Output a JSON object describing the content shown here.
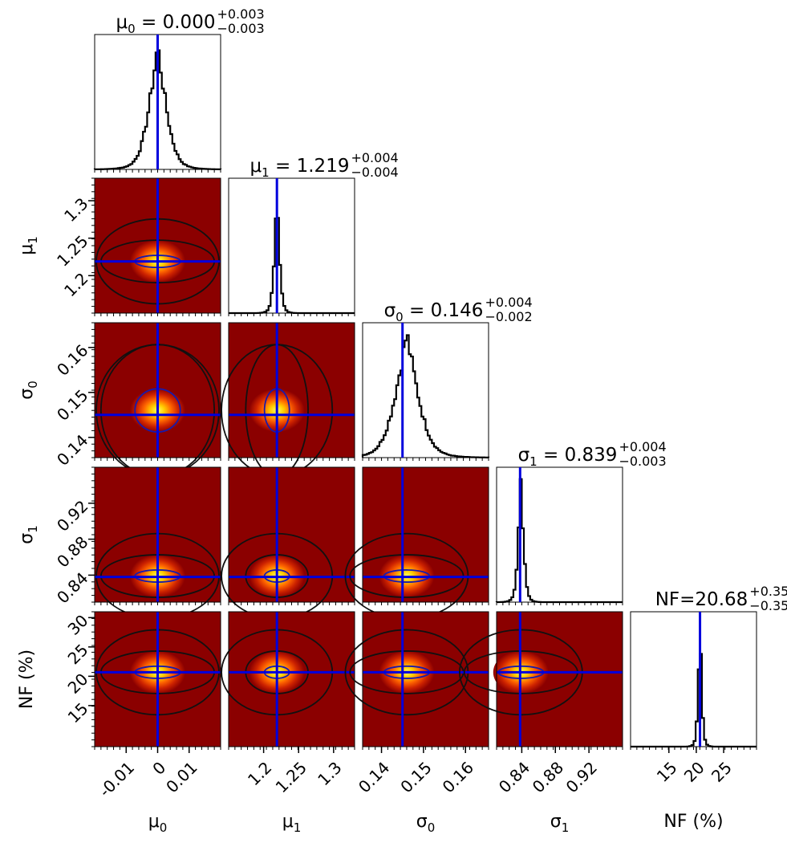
{
  "chart_data": {
    "type": "corner",
    "parameters": [
      {
        "key": "mu0",
        "label": "μ",
        "sub": "0",
        "unit": "",
        "median": 0.0,
        "truth": 0.0,
        "range": [
          -0.02,
          0.02
        ],
        "ticks": [
          -0.01,
          0.0,
          0.01
        ],
        "tick_labels": [
          "-0.01",
          "0",
          "0.01"
        ],
        "title_main": "μ",
        "title_sub": "0",
        "title_value": "= 0.000",
        "title_plus": "+0.003",
        "title_minus": "−0.003",
        "sigma": 0.003
      },
      {
        "key": "mu1",
        "label": "μ",
        "sub": "1",
        "unit": "",
        "median": 1.219,
        "truth": 1.219,
        "range": [
          1.15,
          1.33
        ],
        "ticks": [
          1.2,
          1.25,
          1.3
        ],
        "tick_labels": [
          "1.2",
          "1.25",
          "1.3"
        ],
        "title_main": "μ",
        "title_sub": "1",
        "title_value": "= 1.219",
        "title_plus": "+0.004",
        "title_minus": "−0.004",
        "sigma": 0.004
      },
      {
        "key": "sigma0",
        "label": "σ",
        "sub": "0",
        "unit": "",
        "median": 0.146,
        "truth": 0.145,
        "range": [
          0.1355,
          0.1655
        ],
        "ticks": [
          0.14,
          0.15,
          0.16
        ],
        "tick_labels": [
          "0.14",
          "0.15",
          "0.16"
        ],
        "title_main": "σ",
        "title_sub": "0",
        "title_value": "= 0.146",
        "title_plus": "+0.004",
        "title_minus": "−0.002",
        "sigma": 0.003
      },
      {
        "key": "sigma1",
        "label": "σ",
        "sub": "1",
        "unit": "",
        "median": 0.839,
        "truth": 0.838,
        "range": [
          0.81,
          0.96
        ],
        "ticks": [
          0.84,
          0.88,
          0.92
        ],
        "tick_labels": [
          "0.84",
          "0.88",
          "0.92"
        ],
        "title_main": "σ",
        "title_sub": "1",
        "title_value": "= 0.839",
        "title_plus": "+0.004",
        "title_minus": "−0.003",
        "sigma": 0.0035
      },
      {
        "key": "nf",
        "label": "NF (%)",
        "sub": "",
        "unit": "%",
        "median": 20.68,
        "truth": 20.68,
        "range": [
          8.0,
          31.0
        ],
        "ticks": [
          15,
          20,
          25,
          30
        ],
        "tick_labels": [
          "15",
          "20",
          "25",
          "30"
        ],
        "x_ticks": [
          15,
          20,
          25
        ],
        "x_tick_labels": [
          "15",
          "20",
          "25"
        ],
        "title_main": "NF",
        "title_sub": "",
        "title_value": "=20.68",
        "title_plus": "+0.35",
        "title_minus": "−0.35",
        "sigma": 0.35
      }
    ],
    "truth_line_color": "#0000dd",
    "histogram_color": "#000000",
    "density_colormap": [
      "#8b0000",
      "#cc2200",
      "#ff6600",
      "#ffcc00",
      "#ffff66"
    ],
    "contour_color": "#111111",
    "grid": false
  }
}
